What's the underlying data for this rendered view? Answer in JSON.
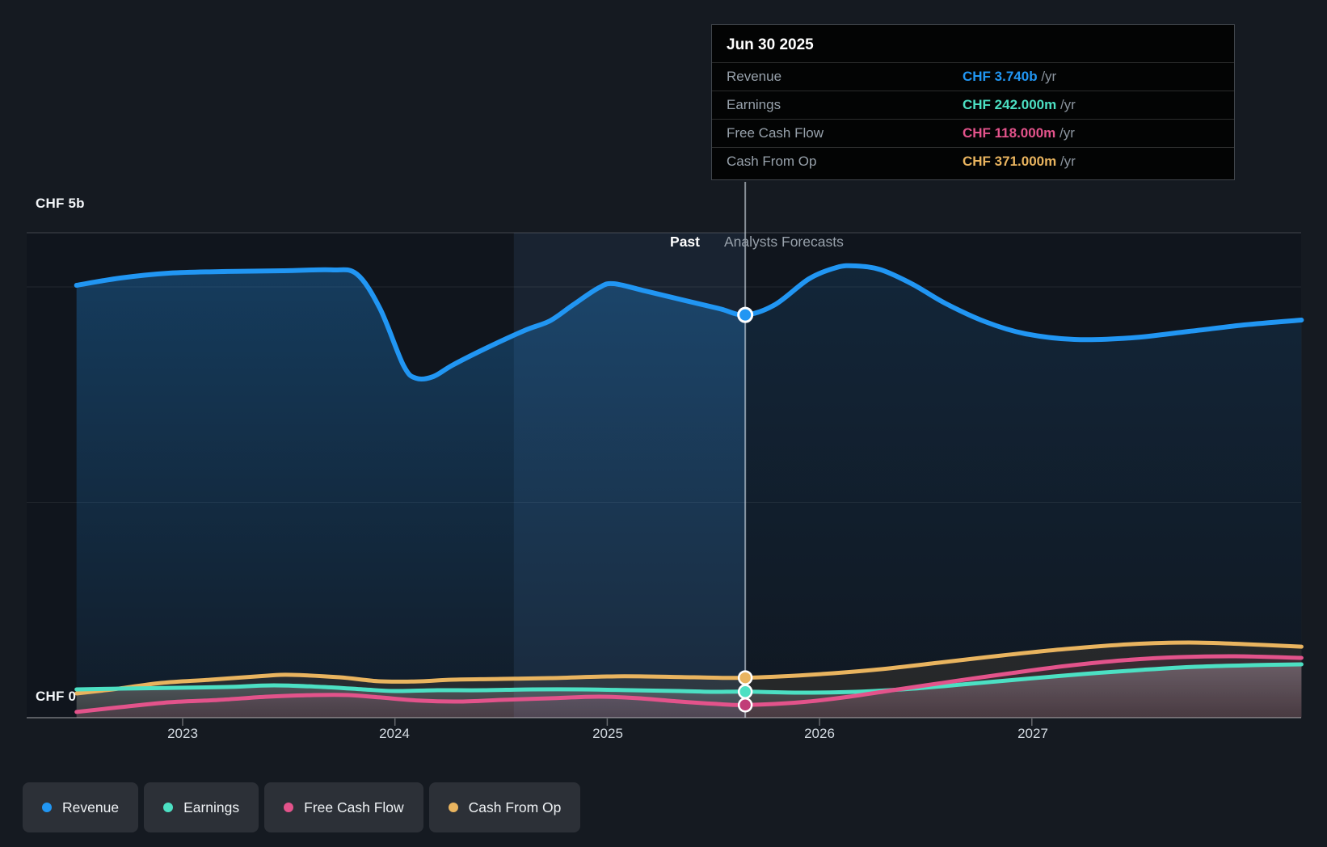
{
  "y_axis": {
    "top_label": "CHF 5b",
    "bottom_label": "CHF 0"
  },
  "sections": {
    "past_label": "Past",
    "forecast_label": "Analysts Forecasts"
  },
  "tooltip": {
    "date": "Jun 30 2025",
    "rows": [
      {
        "label": "Revenue",
        "value": "CHF 3.740b",
        "unit": " /yr",
        "color": "#2196f3"
      },
      {
        "label": "Earnings",
        "value": "CHF 242.000m",
        "unit": " /yr",
        "color": "#4ce0c3"
      },
      {
        "label": "Free Cash Flow",
        "value": "CHF 118.000m",
        "unit": " /yr",
        "color": "#e3538b"
      },
      {
        "label": "Cash From Op",
        "value": "CHF 371.000m",
        "unit": " /yr",
        "color": "#e9b45f"
      }
    ]
  },
  "legend": {
    "items": [
      {
        "label": "Revenue",
        "color": "#2196f3"
      },
      {
        "label": "Earnings",
        "color": "#4ce0c3"
      },
      {
        "label": "Free Cash Flow",
        "color": "#e3538b"
      },
      {
        "label": "Cash From Op",
        "color": "#e9b45f"
      }
    ]
  },
  "chart_data": {
    "type": "area",
    "title": "Past and forecast financials (CHF)",
    "currency": "CHF",
    "units": "billions",
    "ylabel_top": "CHF 5b",
    "ylabel_bottom": "CHF 0",
    "ylim": [
      0,
      4.5
    ],
    "x_ticks": [
      2023,
      2024,
      2025,
      2026,
      2027
    ],
    "x_tick_labels": [
      "2023",
      "2024",
      "2025",
      "2026",
      "2027"
    ],
    "x_range": [
      2022.5,
      2028.27
    ],
    "divider_x": 2025.65,
    "divider_date": "Jun 30 2025",
    "highlight_band_x": [
      2024.56,
      2025.65
    ],
    "gridlines_b": [
      0,
      2,
      4
    ],
    "legend_position": "bottom",
    "series": [
      {
        "name": "Revenue",
        "color": "#2196f3",
        "width": 6,
        "points": [
          [
            2022.5,
            4.015
          ],
          [
            2022.71,
            4.083
          ],
          [
            2022.94,
            4.128
          ],
          [
            2023.21,
            4.143
          ],
          [
            2023.47,
            4.15
          ],
          [
            2023.7,
            4.158
          ],
          [
            2023.82,
            4.12
          ],
          [
            2023.93,
            3.797
          ],
          [
            2024.04,
            3.272
          ],
          [
            2024.1,
            3.152
          ],
          [
            2024.18,
            3.167
          ],
          [
            2024.27,
            3.272
          ],
          [
            2024.42,
            3.422
          ],
          [
            2024.61,
            3.595
          ],
          [
            2024.73,
            3.685
          ],
          [
            2024.84,
            3.835
          ],
          [
            2024.96,
            3.992
          ],
          [
            2025.03,
            4.03
          ],
          [
            2025.18,
            3.962
          ],
          [
            2025.37,
            3.872
          ],
          [
            2025.53,
            3.797
          ],
          [
            2025.65,
            3.74
          ],
          [
            2025.79,
            3.835
          ],
          [
            2025.95,
            4.075
          ],
          [
            2026.08,
            4.18
          ],
          [
            2026.17,
            4.195
          ],
          [
            2026.29,
            4.158
          ],
          [
            2026.44,
            4.023
          ],
          [
            2026.59,
            3.85
          ],
          [
            2026.78,
            3.677
          ],
          [
            2026.97,
            3.565
          ],
          [
            2027.2,
            3.512
          ],
          [
            2027.47,
            3.527
          ],
          [
            2027.74,
            3.587
          ],
          [
            2028.0,
            3.647
          ],
          [
            2028.27,
            3.692
          ]
        ]
      },
      {
        "name": "Cash From Op",
        "color": "#e9b45f",
        "width": 5,
        "points": [
          [
            2022.5,
            0.225
          ],
          [
            2022.67,
            0.263
          ],
          [
            2022.9,
            0.323
          ],
          [
            2023.13,
            0.353
          ],
          [
            2023.4,
            0.39
          ],
          [
            2023.51,
            0.398
          ],
          [
            2023.74,
            0.375
          ],
          [
            2023.93,
            0.338
          ],
          [
            2024.12,
            0.338
          ],
          [
            2024.27,
            0.353
          ],
          [
            2024.5,
            0.36
          ],
          [
            2024.73,
            0.368
          ],
          [
            2025.0,
            0.383
          ],
          [
            2025.18,
            0.383
          ],
          [
            2025.41,
            0.375
          ],
          [
            2025.65,
            0.371
          ],
          [
            2025.95,
            0.398
          ],
          [
            2026.25,
            0.443
          ],
          [
            2026.56,
            0.51
          ],
          [
            2026.86,
            0.578
          ],
          [
            2027.16,
            0.638
          ],
          [
            2027.47,
            0.683
          ],
          [
            2027.74,
            0.698
          ],
          [
            2028.0,
            0.683
          ],
          [
            2028.27,
            0.66
          ]
        ]
      },
      {
        "name": "Earnings",
        "color": "#4ce0c3",
        "width": 5,
        "points": [
          [
            2022.5,
            0.263
          ],
          [
            2022.71,
            0.27
          ],
          [
            2022.98,
            0.278
          ],
          [
            2023.21,
            0.285
          ],
          [
            2023.43,
            0.3
          ],
          [
            2023.66,
            0.285
          ],
          [
            2023.85,
            0.263
          ],
          [
            2024.0,
            0.248
          ],
          [
            2024.2,
            0.255
          ],
          [
            2024.42,
            0.255
          ],
          [
            2024.65,
            0.263
          ],
          [
            2024.88,
            0.263
          ],
          [
            2025.11,
            0.255
          ],
          [
            2025.34,
            0.248
          ],
          [
            2025.49,
            0.24
          ],
          [
            2025.65,
            0.242
          ],
          [
            2025.91,
            0.233
          ],
          [
            2026.17,
            0.24
          ],
          [
            2026.44,
            0.27
          ],
          [
            2026.71,
            0.315
          ],
          [
            2026.97,
            0.36
          ],
          [
            2027.24,
            0.405
          ],
          [
            2027.51,
            0.443
          ],
          [
            2027.77,
            0.473
          ],
          [
            2028.04,
            0.488
          ],
          [
            2028.27,
            0.495
          ]
        ]
      },
      {
        "name": "Free Cash Flow",
        "color": "#e3538b",
        "width": 5,
        "points": [
          [
            2022.5,
            0.053
          ],
          [
            2022.71,
            0.098
          ],
          [
            2022.94,
            0.143
          ],
          [
            2023.17,
            0.165
          ],
          [
            2023.4,
            0.195
          ],
          [
            2023.62,
            0.21
          ],
          [
            2023.78,
            0.21
          ],
          [
            2023.93,
            0.188
          ],
          [
            2024.12,
            0.158
          ],
          [
            2024.31,
            0.15
          ],
          [
            2024.5,
            0.165
          ],
          [
            2024.73,
            0.18
          ],
          [
            2024.96,
            0.195
          ],
          [
            2025.15,
            0.18
          ],
          [
            2025.34,
            0.15
          ],
          [
            2025.51,
            0.128
          ],
          [
            2025.65,
            0.118
          ],
          [
            2025.91,
            0.143
          ],
          [
            2026.14,
            0.195
          ],
          [
            2026.37,
            0.263
          ],
          [
            2026.63,
            0.338
          ],
          [
            2026.9,
            0.413
          ],
          [
            2027.16,
            0.48
          ],
          [
            2027.43,
            0.533
          ],
          [
            2027.7,
            0.563
          ],
          [
            2027.96,
            0.57
          ],
          [
            2028.27,
            0.555
          ]
        ]
      }
    ],
    "marker_values_at_divider": {
      "Revenue": 3.74,
      "Earnings": 0.242,
      "Free Cash Flow": 0.118,
      "Cash From Op": 0.371
    }
  }
}
